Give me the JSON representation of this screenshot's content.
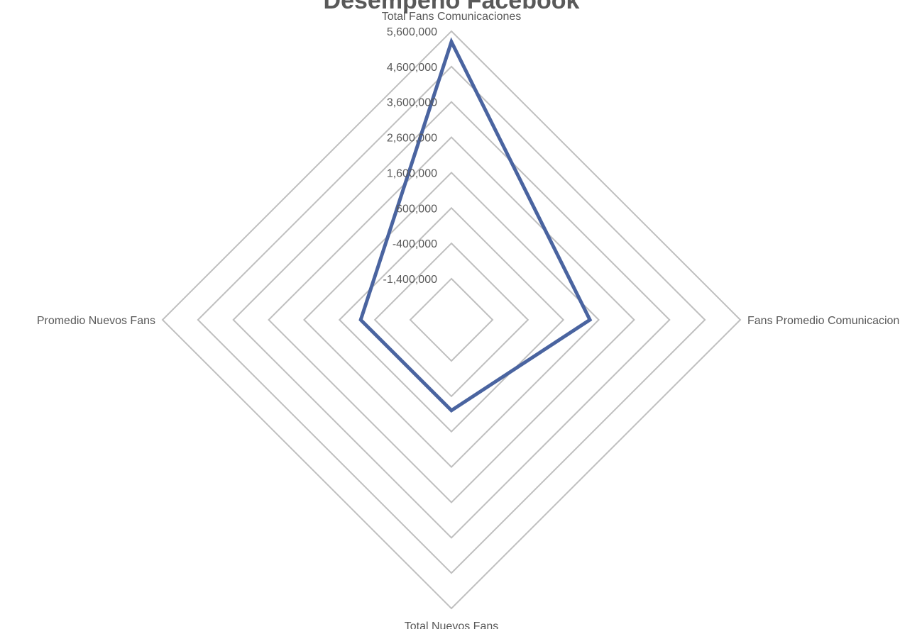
{
  "chart_data": {
    "type": "radar",
    "title": "Desempeño Facebook",
    "categories": [
      "Total Fans Comunicaciones",
      "Fans Promedio Comunicaciones",
      "Total Nuevos Fans",
      "Promedio Nuevos Fans"
    ],
    "series": [
      {
        "values": [
          5300000,
          1350000,
          0,
          0
        ]
      }
    ],
    "axis": {
      "min": -1400000,
      "max": 5600000,
      "major_unit": 1000000,
      "tick_labels": [
        "-1,400,000",
        "-400,000",
        "600,000",
        "1,600,000",
        "2,600,000",
        "3,600,000",
        "4,600,000",
        "5,600,000"
      ]
    },
    "grid": true,
    "legend": "none"
  },
  "colors": {
    "series": "#4a64a0",
    "grid": "#bfbfbf",
    "text": "#595959"
  }
}
